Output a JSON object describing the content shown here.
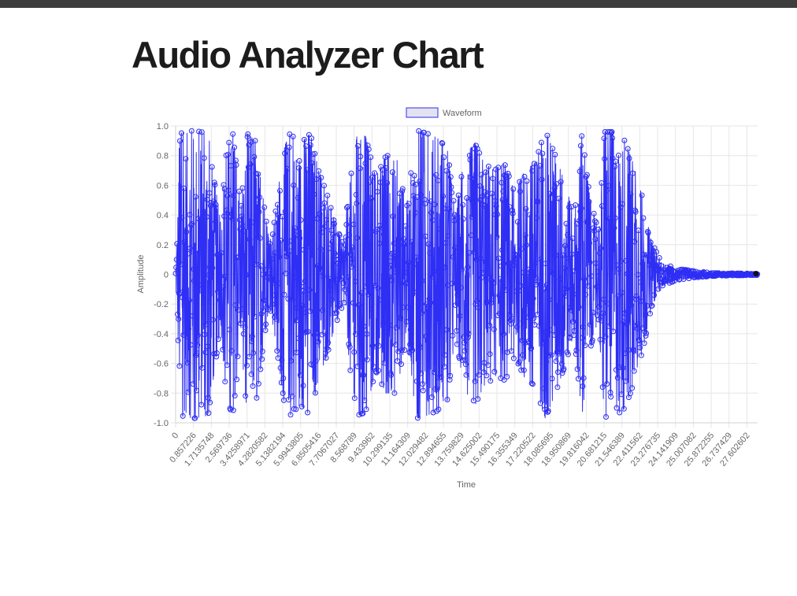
{
  "page": {
    "title": "Audio Analyzer Chart"
  },
  "chart_data": {
    "type": "line",
    "xlabel": "Time",
    "ylabel": "Amplitude",
    "legend_position": "top",
    "grid": true,
    "ylim": [
      -1.0,
      1.0
    ],
    "y_ticks": [
      "1.0",
      "0.8",
      "0.6",
      "0.4",
      "0.2",
      "0",
      "-0.2",
      "-0.4",
      "-0.6",
      "-0.8",
      "-1.0"
    ],
    "y_tick_values": [
      1.0,
      0.8,
      0.6,
      0.4,
      0.2,
      0,
      -0.2,
      -0.4,
      -0.6,
      -0.8,
      -1.0
    ],
    "x_ticks": [
      "0",
      "0.857226",
      "1.7135748",
      "2.569736",
      "3.4258971",
      "4.2820582",
      "5.1382194",
      "5.9943805",
      "6.8505416",
      "7.7067027",
      "8.568789",
      "9.433962",
      "10.299135",
      "11.164309",
      "12.029482",
      "12.894655",
      "13.759829",
      "14.625002",
      "15.490175",
      "16.355349",
      "17.220522",
      "18.085695",
      "18.950869",
      "19.816042",
      "20.681215",
      "21.546389",
      "22.411562",
      "23.276735",
      "24.141909",
      "25.007082",
      "25.872255",
      "26.737429",
      "27.602602"
    ],
    "xlim": [
      0,
      28.5
    ],
    "series": [
      {
        "name": "Waveform",
        "color": "#2e2ef5",
        "fill": "#e3e3ef",
        "envelope": [
          {
            "t": 0.0,
            "amp": 0.02
          },
          {
            "t": 0.2,
            "amp": 0.95
          },
          {
            "t": 0.9,
            "amp": 0.97
          },
          {
            "t": 1.6,
            "amp": 0.95
          },
          {
            "t": 2.2,
            "amp": 0.35
          },
          {
            "t": 2.5,
            "amp": 0.85
          },
          {
            "t": 2.8,
            "amp": 0.95
          },
          {
            "t": 3.2,
            "amp": 0.45
          },
          {
            "t": 3.5,
            "amp": 0.95
          },
          {
            "t": 3.9,
            "amp": 0.9
          },
          {
            "t": 4.3,
            "amp": 0.5
          },
          {
            "t": 4.6,
            "amp": 0.2
          },
          {
            "t": 4.9,
            "amp": 0.45
          },
          {
            "t": 5.3,
            "amp": 0.85
          },
          {
            "t": 5.6,
            "amp": 0.95
          },
          {
            "t": 6.1,
            "amp": 0.88
          },
          {
            "t": 6.6,
            "amp": 0.95
          },
          {
            "t": 7.0,
            "amp": 0.7
          },
          {
            "t": 7.4,
            "amp": 0.55
          },
          {
            "t": 7.8,
            "amp": 0.35
          },
          {
            "t": 8.2,
            "amp": 0.2
          },
          {
            "t": 8.5,
            "amp": 0.6
          },
          {
            "t": 8.9,
            "amp": 0.95
          },
          {
            "t": 9.3,
            "amp": 0.93
          },
          {
            "t": 9.8,
            "amp": 0.65
          },
          {
            "t": 10.3,
            "amp": 0.8
          },
          {
            "t": 10.8,
            "amp": 0.8
          },
          {
            "t": 11.3,
            "amp": 0.45
          },
          {
            "t": 11.8,
            "amp": 0.97
          },
          {
            "t": 12.3,
            "amp": 0.95
          },
          {
            "t": 12.8,
            "amp": 0.92
          },
          {
            "t": 13.3,
            "amp": 0.85
          },
          {
            "t": 13.7,
            "amp": 0.4
          },
          {
            "t": 14.1,
            "amp": 0.75
          },
          {
            "t": 14.6,
            "amp": 0.9
          },
          {
            "t": 15.1,
            "amp": 0.75
          },
          {
            "t": 15.6,
            "amp": 0.7
          },
          {
            "t": 16.1,
            "amp": 0.75
          },
          {
            "t": 16.6,
            "amp": 0.55
          },
          {
            "t": 17.1,
            "amp": 0.7
          },
          {
            "t": 17.6,
            "amp": 0.75
          },
          {
            "t": 18.1,
            "amp": 0.97
          },
          {
            "t": 18.6,
            "amp": 0.8
          },
          {
            "t": 19.1,
            "amp": 0.6
          },
          {
            "t": 19.5,
            "amp": 0.4
          },
          {
            "t": 19.9,
            "amp": 0.95
          },
          {
            "t": 20.3,
            "amp": 0.5
          },
          {
            "t": 20.7,
            "amp": 0.3
          },
          {
            "t": 21.0,
            "amp": 0.96
          },
          {
            "t": 21.5,
            "amp": 0.96
          },
          {
            "t": 22.0,
            "amp": 0.9
          },
          {
            "t": 22.4,
            "amp": 0.75
          },
          {
            "t": 22.9,
            "amp": 0.5
          },
          {
            "t": 23.3,
            "amp": 0.22
          },
          {
            "t": 23.8,
            "amp": 0.08
          },
          {
            "t": 24.5,
            "amp": 0.04
          },
          {
            "t": 25.5,
            "amp": 0.02
          },
          {
            "t": 26.5,
            "amp": 0.01
          },
          {
            "t": 28.5,
            "amp": 0.005
          }
        ]
      }
    ]
  }
}
